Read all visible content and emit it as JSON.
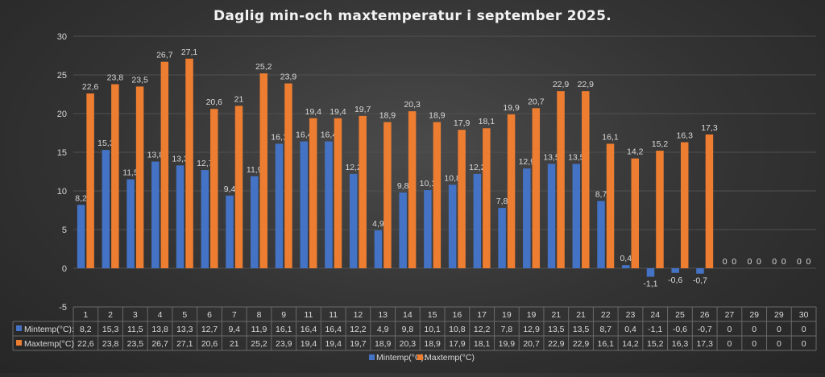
{
  "chart_data": {
    "type": "bar",
    "title": "Daglig min-och maxtemperatur i september 2025.",
    "categories": [
      "1",
      "2",
      "3",
      "4",
      "5",
      "6",
      "7",
      "8",
      "9",
      "11",
      "11",
      "12",
      "13",
      "14",
      "15",
      "16",
      "17",
      "19",
      "19",
      "21",
      "21",
      "22",
      "23",
      "24",
      "25",
      "26",
      "27",
      "29",
      "29",
      "30"
    ],
    "series": [
      {
        "name": "Mintemp(°C):",
        "color": "#4472c4",
        "labels": [
          "8,2",
          "15,3",
          "11,5",
          "13,8",
          "13,3",
          "12,7",
          "9,4",
          "11,9",
          "16,1",
          "16,4",
          "16,4",
          "12,2",
          "4,9",
          "9,8",
          "10,1",
          "10,8",
          "12,2",
          "7,8",
          "12,9",
          "13,5",
          "13,5",
          "8,7",
          "0,4",
          "-1,1",
          "-0,6",
          "-0,7",
          "0",
          "0",
          "0",
          "0"
        ],
        "values": [
          8.2,
          15.3,
          11.5,
          13.8,
          13.3,
          12.7,
          9.4,
          11.9,
          16.1,
          16.4,
          16.4,
          12.2,
          4.9,
          9.8,
          10.1,
          10.8,
          12.2,
          7.8,
          12.9,
          13.5,
          13.5,
          8.7,
          0.4,
          -1.1,
          -0.6,
          -0.7,
          0,
          0,
          0,
          0
        ]
      },
      {
        "name": "Maxtemp(°C)",
        "color": "#ed7d31",
        "labels": [
          "22,6",
          "23,8",
          "23,5",
          "26,7",
          "27,1",
          "20,6",
          "21",
          "25,2",
          "23,9",
          "19,4",
          "19,4",
          "19,7",
          "18,9",
          "20,3",
          "18,9",
          "17,9",
          "18,1",
          "19,9",
          "20,7",
          "22,9",
          "22,9",
          "16,1",
          "14,2",
          "15,2",
          "16,3",
          "17,3",
          "0",
          "0",
          "0",
          "0"
        ],
        "values": [
          22.6,
          23.8,
          23.5,
          26.7,
          27.1,
          20.6,
          21,
          25.2,
          23.9,
          19.4,
          19.4,
          19.7,
          18.9,
          20.3,
          18.9,
          17.9,
          18.1,
          19.9,
          20.7,
          22.9,
          22.9,
          16.1,
          14.2,
          15.2,
          16.3,
          17.3,
          0,
          0,
          0,
          0
        ]
      }
    ],
    "table_series_labels": [
      "Mintemp(°C):",
      "Maxtemp(°C)"
    ],
    "legend": {
      "items": [
        "Mintemp(°C):",
        "Maxtemp(°C)"
      ],
      "placement": "bottom"
    },
    "ylim": [
      -5,
      30
    ],
    "yticks": [
      "-5",
      "0",
      "5",
      "10",
      "15",
      "20",
      "25",
      "30"
    ],
    "grid": true,
    "data_table": true
  }
}
